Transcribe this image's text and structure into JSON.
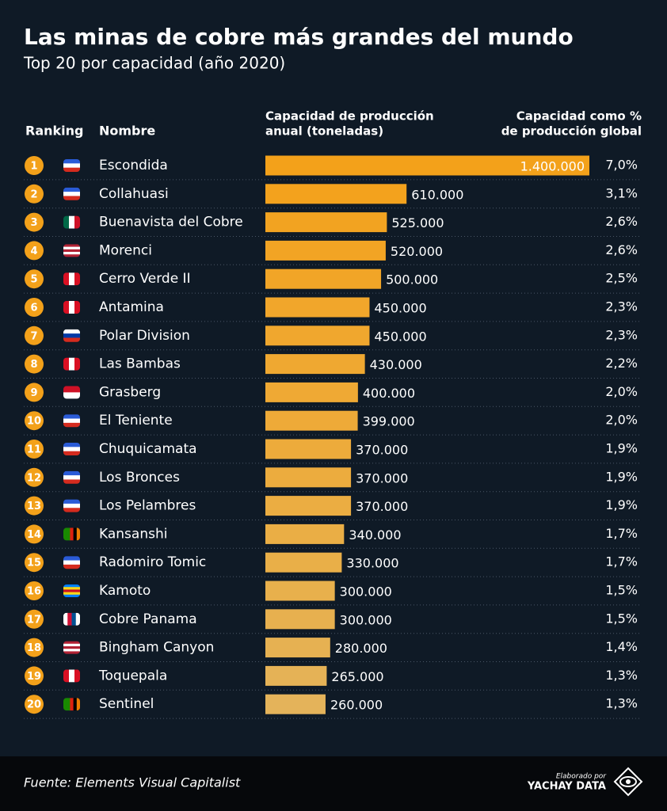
{
  "chart_data": {
    "type": "bar",
    "title": "Las minas de cobre más grandes del mundo",
    "subtitle": "Top 20 por capacidad (año 2020)",
    "rank_header": "Ranking",
    "name_header": "Nombre",
    "value_header": [
      "Capacidad de producción",
      "anual (toneladas)"
    ],
    "share_header": [
      "Capacidad como %",
      "de producción global"
    ],
    "ranks": [
      1,
      2,
      3,
      4,
      5,
      6,
      7,
      8,
      9,
      10,
      11,
      12,
      13,
      14,
      15,
      16,
      17,
      18,
      19,
      20
    ],
    "categories": [
      "Escondida",
      "Collahuasi",
      "Buenavista del Cobre",
      "Morenci",
      "Cerro Verde II",
      "Antamina",
      "Polar Division",
      "Las Bambas",
      "Grasberg",
      "El Teniente",
      "Chuquicamata",
      "Los Bronces",
      "Los Pelambres",
      "Kansanshi",
      "Radomiro Tomic",
      "Kamoto",
      "Cobre Panama",
      "Bingham Canyon",
      "Toquepala",
      "Sentinel"
    ],
    "values": [
      1400000,
      610000,
      525000,
      520000,
      500000,
      450000,
      450000,
      430000,
      400000,
      399000,
      370000,
      370000,
      370000,
      340000,
      330000,
      300000,
      300000,
      280000,
      265000,
      260000
    ],
    "value_labels": [
      "1.400.000",
      "610.000",
      "525.000",
      "520.000",
      "500.000",
      "450.000",
      "450.000",
      "430.000",
      "400.000",
      "399.000",
      "370.000",
      "370.000",
      "370.000",
      "340.000",
      "330.000",
      "300.000",
      "300.000",
      "280.000",
      "265.000",
      "260.000"
    ],
    "shares": [
      "7,0%",
      "3,1%",
      "2,6%",
      "2,6%",
      "2,5%",
      "2,3%",
      "2,3%",
      "2,2%",
      "2,0%",
      "2,0%",
      "1,9%",
      "1,9%",
      "1,9%",
      "1,7%",
      "1,7%",
      "1,5%",
      "1,5%",
      "1,4%",
      "1,3%",
      "1,3%"
    ],
    "colors": [
      "#f3a11a",
      "#f3a21d",
      "#f2a321",
      "#f2a424",
      "#f1a527",
      "#f1a62b",
      "#f0a72e",
      "#efa831",
      "#efa934",
      "#eeaa38",
      "#edab3b",
      "#ecac3e",
      "#ebad42",
      "#eaae45",
      "#e9af48",
      "#e8b04c",
      "#e7b04f",
      "#e6b152",
      "#e5b256",
      "#e4b35a"
    ],
    "flags": [
      {
        "vertical": false,
        "stripes": [
          "#2a5bd7",
          "#ffffff",
          "#d52b1e"
        ]
      },
      {
        "vertical": false,
        "stripes": [
          "#2a5bd7",
          "#ffffff",
          "#d52b1e"
        ]
      },
      {
        "vertical": true,
        "stripes": [
          "#006847",
          "#ffffff",
          "#ce1126"
        ]
      },
      {
        "vertical": false,
        "stripes": [
          "#b22234",
          "#ffffff",
          "#b22234",
          "#ffffff",
          "#b22234"
        ]
      },
      {
        "vertical": true,
        "stripes": [
          "#d91023",
          "#ffffff",
          "#d91023"
        ]
      },
      {
        "vertical": true,
        "stripes": [
          "#d91023",
          "#ffffff",
          "#d91023"
        ]
      },
      {
        "vertical": false,
        "stripes": [
          "#ffffff",
          "#0039a6",
          "#d52b1e"
        ]
      },
      {
        "vertical": true,
        "stripes": [
          "#d91023",
          "#ffffff",
          "#d91023"
        ]
      },
      {
        "vertical": false,
        "stripes": [
          "#ce1126",
          "#ffffff"
        ]
      },
      {
        "vertical": false,
        "stripes": [
          "#2a5bd7",
          "#ffffff",
          "#d52b1e"
        ]
      },
      {
        "vertical": false,
        "stripes": [
          "#2a5bd7",
          "#ffffff",
          "#d52b1e"
        ]
      },
      {
        "vertical": false,
        "stripes": [
          "#2a5bd7",
          "#ffffff",
          "#d52b1e"
        ]
      },
      {
        "vertical": false,
        "stripes": [
          "#2a5bd7",
          "#ffffff",
          "#d52b1e"
        ]
      },
      {
        "vertical": true,
        "stripes": [
          "#198a00",
          "#198a00",
          "#de2010",
          "#000000",
          "#ef7d00"
        ]
      },
      {
        "vertical": false,
        "stripes": [
          "#2a5bd7",
          "#ffffff",
          "#d52b1e"
        ]
      },
      {
        "vertical": false,
        "stripes": [
          "#007fff",
          "#f7d618",
          "#ce1021",
          "#f7d618",
          "#007fff"
        ]
      },
      {
        "vertical": true,
        "stripes": [
          "#ffffff",
          "#d21034",
          "#005293",
          "#ffffff"
        ]
      },
      {
        "vertical": false,
        "stripes": [
          "#b22234",
          "#ffffff",
          "#b22234",
          "#ffffff",
          "#b22234"
        ]
      },
      {
        "vertical": true,
        "stripes": [
          "#d91023",
          "#ffffff",
          "#d91023"
        ]
      },
      {
        "vertical": true,
        "stripes": [
          "#198a00",
          "#198a00",
          "#de2010",
          "#000000",
          "#ef7d00"
        ]
      }
    ],
    "rank_color": "#f3a11a",
    "source": "Fuente: Elements Visual Capitalist",
    "credit_small": "Elaborado por",
    "credit": "YACHAY DATA"
  }
}
